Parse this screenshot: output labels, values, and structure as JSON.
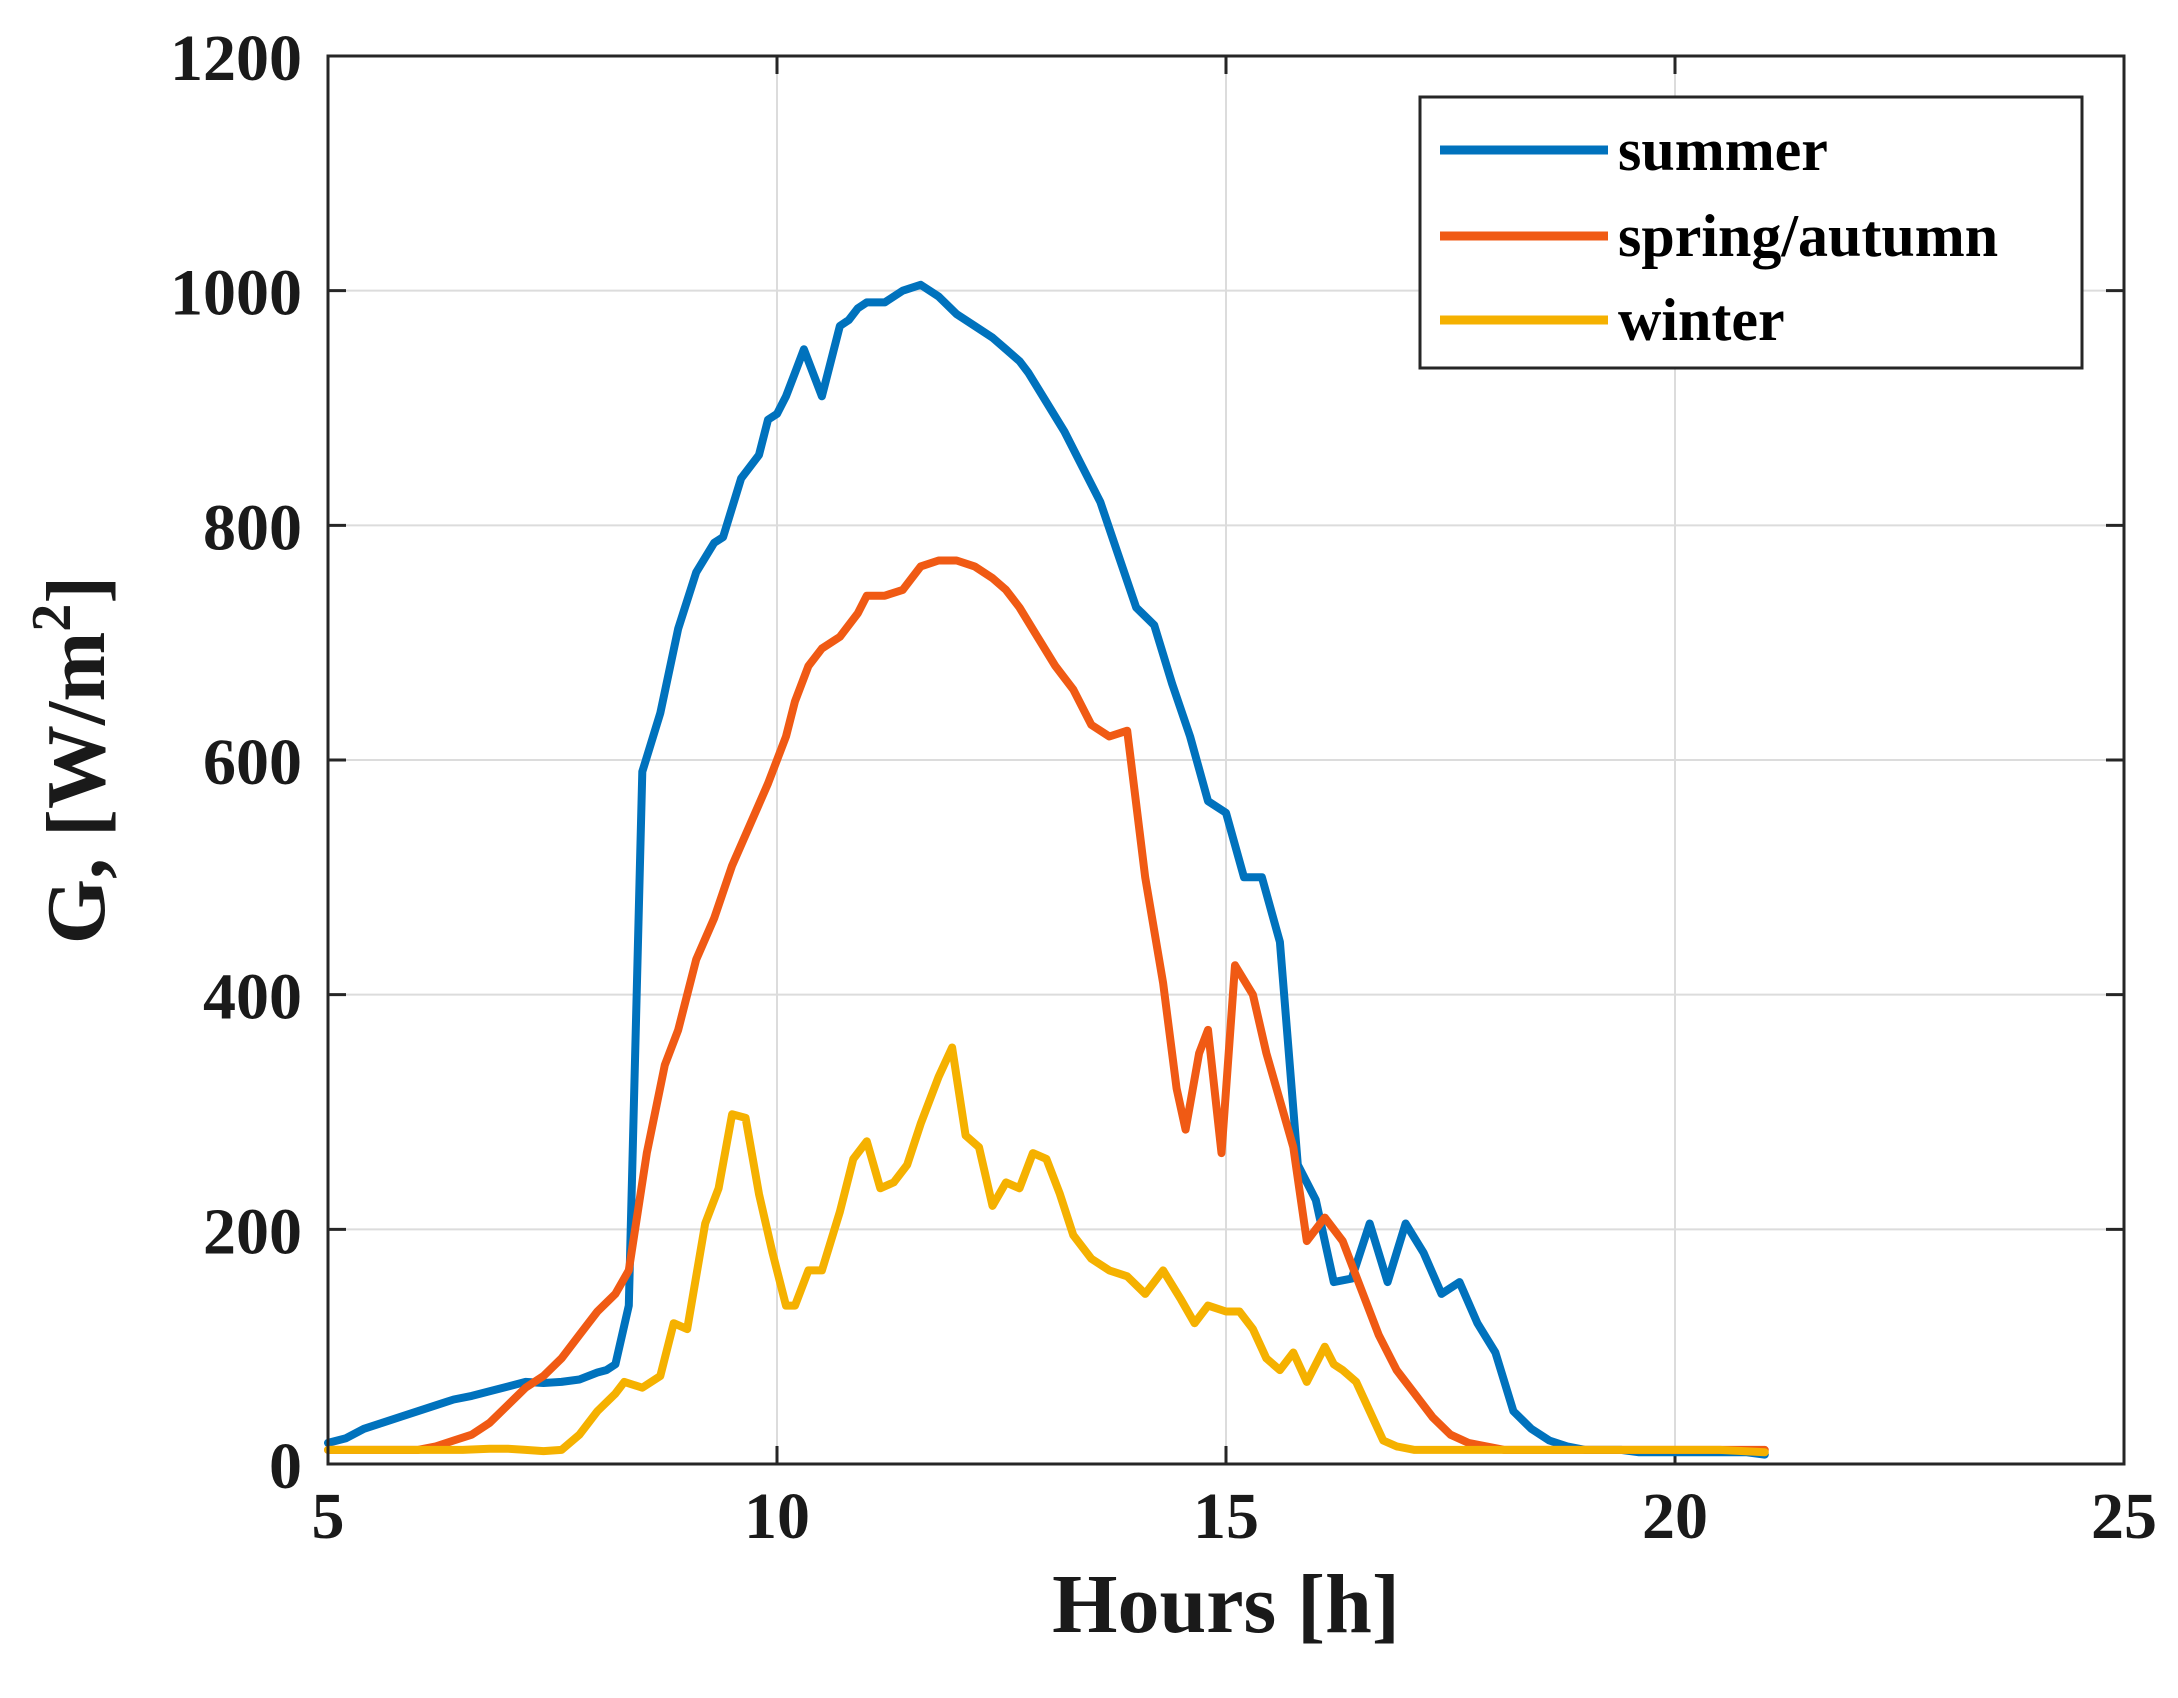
{
  "chart_data": {
    "type": "line",
    "xlabel": "Hours [h]",
    "ylabel": "G, [W/m^2]",
    "ylabel_parts": {
      "main": "G, [W/m",
      "sup": "2",
      "close": "]"
    },
    "xlim": [
      5,
      25
    ],
    "ylim": [
      0,
      1200
    ],
    "xticks": [
      5,
      10,
      15,
      20,
      25
    ],
    "yticks": [
      0,
      200,
      400,
      600,
      800,
      1000,
      1200
    ],
    "grid": true,
    "legend_position": "top-right",
    "series": [
      {
        "name": "summer",
        "color": "#0072BD",
        "x": [
          5.0,
          5.2,
          5.4,
          5.6,
          5.8,
          6.0,
          6.2,
          6.4,
          6.6,
          6.8,
          7.0,
          7.2,
          7.4,
          7.6,
          7.8,
          8.0,
          8.1,
          8.2,
          8.35,
          8.5,
          8.7,
          8.9,
          9.1,
          9.3,
          9.4,
          9.6,
          9.8,
          9.9,
          10.0,
          10.1,
          10.2,
          10.3,
          10.5,
          10.7,
          10.8,
          10.9,
          11.0,
          11.2,
          11.4,
          11.6,
          11.8,
          12.0,
          12.2,
          12.4,
          12.55,
          12.7,
          12.8,
          13.0,
          13.2,
          13.4,
          13.6,
          13.8,
          14.0,
          14.2,
          14.4,
          14.6,
          14.8,
          15.0,
          15.2,
          15.4,
          15.6,
          15.8,
          16.0,
          16.2,
          16.4,
          16.6,
          16.8,
          17.0,
          17.2,
          17.4,
          17.6,
          17.8,
          18.0,
          18.2,
          18.4,
          18.6,
          18.8,
          19.0,
          19.2,
          19.4,
          19.6,
          19.8,
          20.0,
          20.2,
          20.4,
          20.6,
          20.8,
          21.0
        ],
        "values": [
          18,
          22,
          30,
          35,
          40,
          45,
          50,
          55,
          58,
          62,
          66,
          70,
          69,
          70,
          72,
          78,
          80,
          85,
          135,
          590,
          640,
          712,
          760,
          785,
          790,
          840,
          860,
          890,
          895,
          910,
          930,
          950,
          910,
          970,
          975,
          985,
          990,
          990,
          1000,
          1005,
          995,
          980,
          970,
          960,
          950,
          940,
          930,
          905,
          880,
          850,
          820,
          775,
          730,
          715,
          665,
          620,
          565,
          555,
          500,
          500,
          445,
          255,
          225,
          155,
          158,
          205,
          155,
          205,
          180,
          145,
          155,
          120,
          95,
          45,
          30,
          20,
          15,
          12,
          12,
          12,
          10,
          10,
          10,
          10,
          10,
          10,
          10,
          8
        ]
      },
      {
        "name": "spring/autumn",
        "color": "#F05A14",
        "x": [
          5.0,
          5.5,
          6.0,
          6.2,
          6.4,
          6.6,
          6.8,
          7.0,
          7.2,
          7.4,
          7.6,
          7.8,
          8.0,
          8.2,
          8.35,
          8.55,
          8.75,
          8.9,
          9.1,
          9.3,
          9.5,
          9.7,
          9.9,
          10.1,
          10.2,
          10.35,
          10.5,
          10.7,
          10.9,
          11.0,
          11.2,
          11.4,
          11.6,
          11.8,
          12.0,
          12.2,
          12.4,
          12.55,
          12.7,
          12.9,
          13.1,
          13.3,
          13.5,
          13.7,
          13.9,
          14.1,
          14.3,
          14.45,
          14.55,
          14.7,
          14.8,
          14.95,
          15.1,
          15.3,
          15.45,
          15.6,
          15.75,
          15.9,
          16.1,
          16.3,
          16.5,
          16.7,
          16.9,
          17.1,
          17.3,
          17.5,
          17.7,
          17.9,
          18.1,
          18.3,
          18.5,
          18.7,
          18.9,
          19.2,
          19.6,
          20.0,
          20.5,
          21.0
        ],
        "values": [
          12,
          12,
          12,
          15,
          20,
          25,
          35,
          50,
          65,
          75,
          90,
          110,
          130,
          145,
          165,
          265,
          340,
          370,
          430,
          465,
          510,
          545,
          580,
          620,
          650,
          680,
          695,
          705,
          725,
          740,
          740,
          745,
          765,
          770,
          770,
          765,
          755,
          745,
          730,
          705,
          680,
          660,
          630,
          620,
          625,
          500,
          410,
          320,
          285,
          350,
          370,
          265,
          425,
          400,
          350,
          310,
          270,
          190,
          210,
          190,
          150,
          110,
          80,
          60,
          40,
          25,
          18,
          15,
          12,
          12,
          12,
          12,
          12,
          12,
          12,
          12,
          12,
          12
        ]
      },
      {
        "name": "winter",
        "color": "#F5B100",
        "x": [
          5.0,
          5.5,
          6.0,
          6.5,
          6.8,
          7.0,
          7.2,
          7.4,
          7.6,
          7.8,
          8.0,
          8.2,
          8.3,
          8.5,
          8.7,
          8.85,
          9.0,
          9.2,
          9.35,
          9.5,
          9.65,
          9.8,
          9.95,
          10.1,
          10.2,
          10.35,
          10.5,
          10.7,
          10.85,
          11.0,
          11.15,
          11.3,
          11.45,
          11.6,
          11.8,
          11.95,
          12.1,
          12.25,
          12.4,
          12.55,
          12.7,
          12.85,
          13.0,
          13.15,
          13.3,
          13.5,
          13.7,
          13.9,
          14.1,
          14.3,
          14.5,
          14.65,
          14.8,
          15.0,
          15.15,
          15.3,
          15.45,
          15.6,
          15.75,
          15.9,
          16.1,
          16.2,
          16.3,
          16.45,
          16.6,
          16.75,
          16.9,
          17.1,
          17.3,
          17.5,
          17.7,
          17.9,
          18.2,
          18.5,
          19.0,
          19.5,
          20.0,
          20.5,
          21.0
        ],
        "values": [
          12,
          12,
          12,
          12,
          13,
          13,
          12,
          11,
          12,
          25,
          45,
          60,
          70,
          65,
          75,
          120,
          115,
          205,
          235,
          298,
          295,
          230,
          180,
          135,
          135,
          165,
          165,
          215,
          260,
          275,
          235,
          240,
          255,
          290,
          330,
          355,
          280,
          270,
          220,
          240,
          235,
          265,
          260,
          230,
          195,
          175,
          165,
          160,
          145,
          165,
          140,
          120,
          135,
          130,
          130,
          115,
          90,
          80,
          95,
          70,
          100,
          85,
          80,
          70,
          45,
          20,
          15,
          12,
          12,
          12,
          12,
          12,
          12,
          12,
          12,
          12,
          12,
          12,
          10
        ]
      }
    ]
  }
}
